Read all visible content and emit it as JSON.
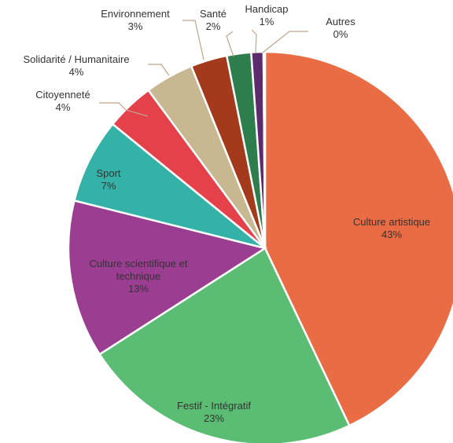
{
  "chart_data": {
    "type": "pie",
    "title": "",
    "slices": [
      {
        "label": "Culture artistique",
        "value": 43,
        "percent_label": "43%",
        "color": "#ea6c44"
      },
      {
        "label": "Festif - Intégratif",
        "value": 23,
        "percent_label": "23%",
        "color": "#5bbd74"
      },
      {
        "label": "Culture scientifique et technique",
        "value": 13,
        "percent_label": "13%",
        "color": "#9b3d91"
      },
      {
        "label": "Sport",
        "value": 7,
        "percent_label": "7%",
        "color": "#35b2a8"
      },
      {
        "label": "Citoyenneté",
        "value": 4,
        "percent_label": "4%",
        "color": "#e5414a"
      },
      {
        "label": "Solidarité / Humanitaire",
        "value": 4,
        "percent_label": "4%",
        "color": "#c8b892"
      },
      {
        "label": "Environnement",
        "value": 3,
        "percent_label": "3%",
        "color": "#a33a1c"
      },
      {
        "label": "Santé",
        "value": 2,
        "percent_label": "2%",
        "color": "#2e7d4c"
      },
      {
        "label": "Handicap",
        "value": 1,
        "percent_label": "1%",
        "color": "#5e2a6e"
      },
      {
        "label": "Autres",
        "value": 0,
        "percent_label": "0%",
        "color": "#2f7f86"
      }
    ],
    "legend": "none"
  }
}
